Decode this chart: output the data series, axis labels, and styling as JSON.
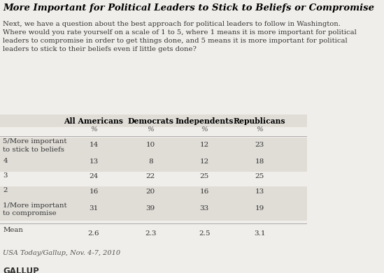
{
  "title": "More Important for Political Leaders to Stick to Beliefs or Compromise",
  "subtitle": "Next, we have a question about the best approach for political leaders to follow in Washington.\nWhere would you rate yourself on a scale of 1 to 5, where 1 means it is more important for political\nleaders to compromise in order to get things done, and 5 means it is more important for political\nleaders to stick to their beliefs even if little gets done?",
  "columns": [
    "All Americans",
    "Democrats",
    "Independents",
    "Republicans"
  ],
  "row_labels": [
    "5/More important\nto stick to beliefs",
    "4",
    "3",
    "2",
    "1/More important\nto compromise",
    "Mean"
  ],
  "data": [
    [
      14,
      10,
      12,
      23
    ],
    [
      13,
      8,
      12,
      18
    ],
    [
      24,
      22,
      25,
      25
    ],
    [
      16,
      20,
      16,
      13
    ],
    [
      31,
      39,
      33,
      19
    ],
    [
      2.6,
      2.3,
      2.5,
      3.1
    ]
  ],
  "shaded_rows": [
    0,
    1,
    3,
    4
  ],
  "source": "USA Today/Gallup, Nov. 4-7, 2010",
  "brand": "GALLUP",
  "bg_color": "#f0eeea",
  "shaded_color": "#e0ddd7",
  "text_color": "#333333",
  "title_color": "#000000"
}
